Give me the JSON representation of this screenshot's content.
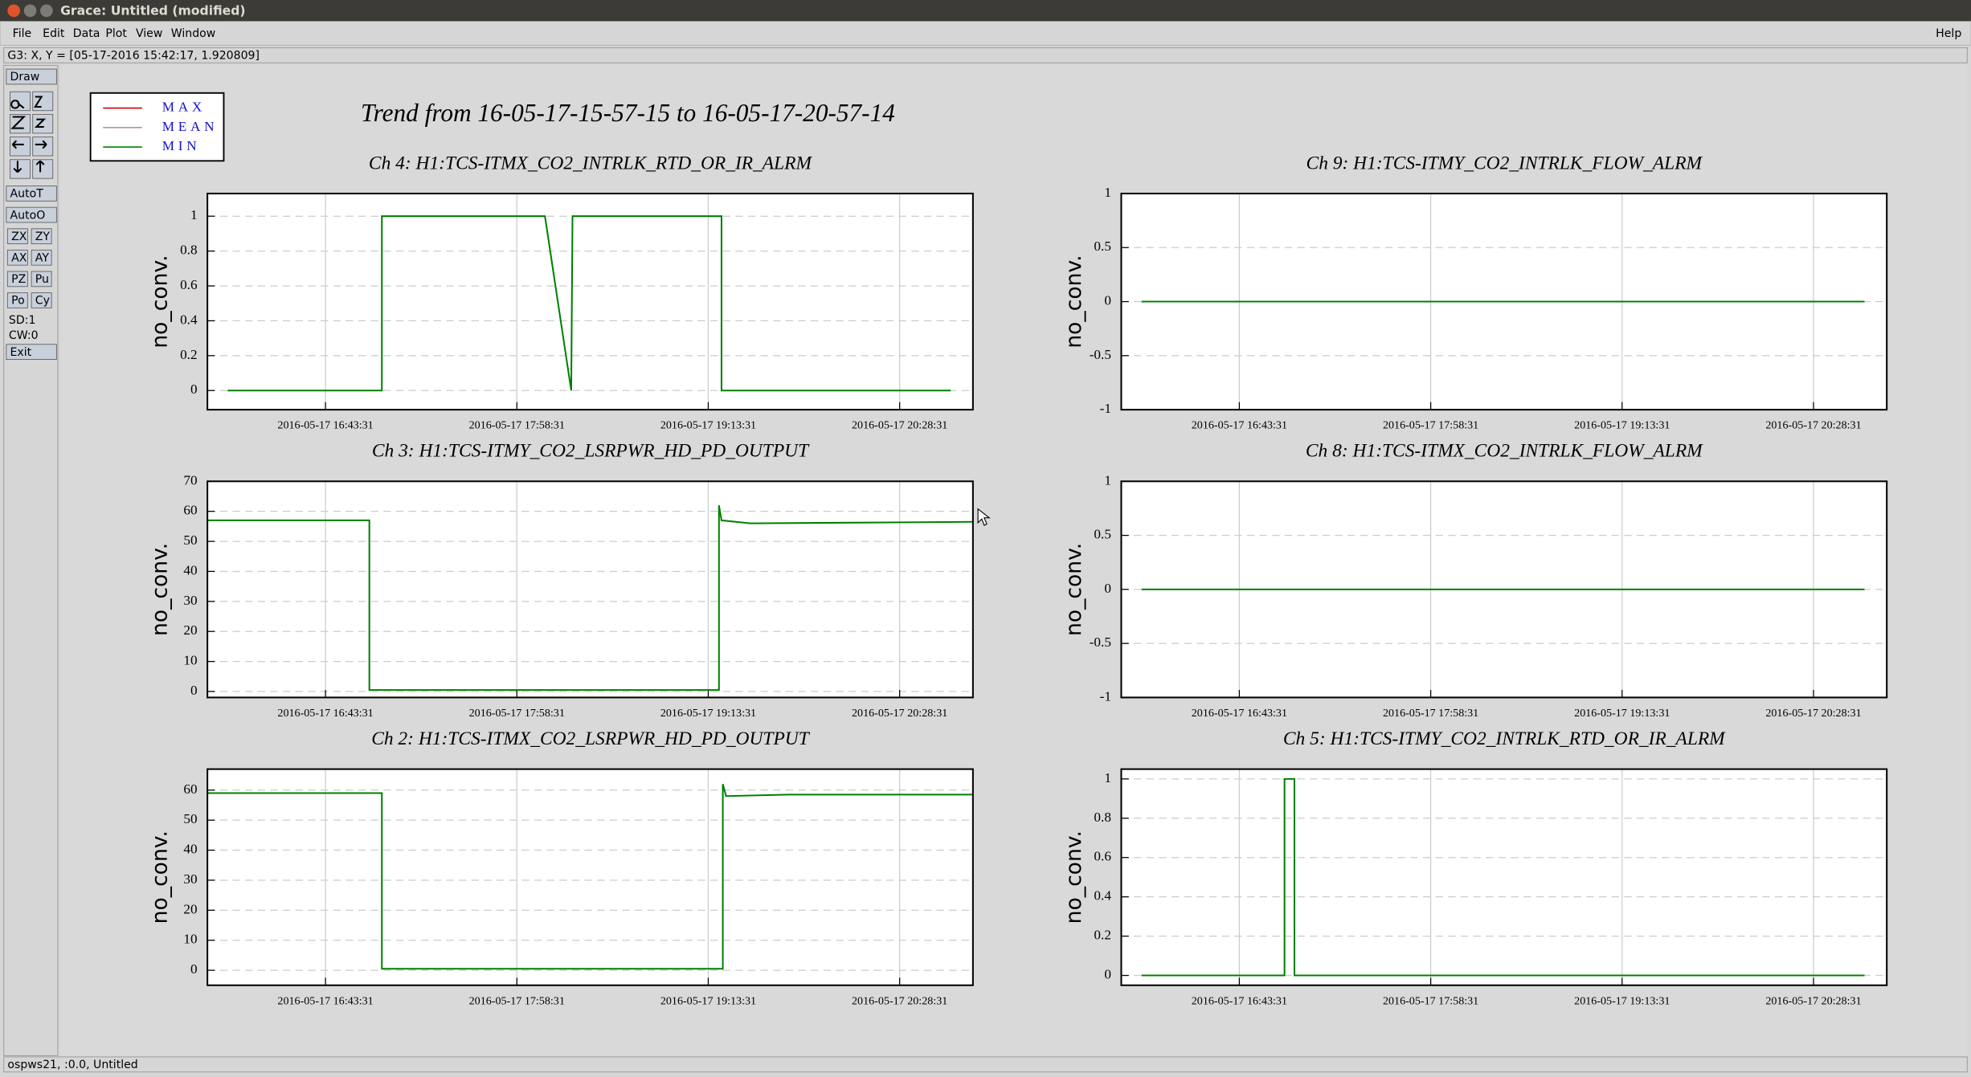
{
  "window": {
    "title": "Grace: Untitled (modified)"
  },
  "menu": [
    "File",
    "Edit",
    "Data",
    "Plot",
    "View",
    "Window"
  ],
  "help": "Help",
  "status_top": "G3: X, Y = [05-17-2016 15:42:17, 1.920809]",
  "status_bottom": "ospws21, :0.0, Untitled",
  "toolbar": {
    "buttons": [
      "Draw",
      "AutoT",
      "AutoO",
      "ZX",
      "ZY",
      "AX",
      "AY",
      "PZ",
      "Pu",
      "Po",
      "Cy",
      "Exit"
    ],
    "labels": [
      "SD:1",
      "CW:0"
    ]
  },
  "title": "Trend from 16-05-17-15-57-15 to 16-05-17-20-57-14",
  "legend": [
    {
      "name": "MAX",
      "color": "#d00000"
    },
    {
      "name": "MEAN",
      "color": "#c09090"
    },
    {
      "name": "MIN",
      "color": "#008000"
    }
  ],
  "chart_data": [
    {
      "type": "line",
      "title": "Ch 4: H1:TCS-ITMX_CO2_INTRLK_RTD_OR_IR_ALRM",
      "ylabel": "no_conv.",
      "xlim": [
        "2016-05-17 15:57:15",
        "2016-05-17 20:57:14"
      ],
      "xticks": [
        "2016-05-17 16:43:31",
        "2016-05-17 17:58:31",
        "2016-05-17 19:13:31",
        "2016-05-17 20:28:31"
      ],
      "ylim": [
        -0.11,
        1.13
      ],
      "yticks": [
        0,
        0.2,
        0.4,
        0.6,
        0.8,
        1
      ],
      "grid": true,
      "color": "#008000",
      "x": [
        "2016-05-17 16:05:12",
        "2016-05-17 17:05:37",
        "2016-05-17 17:05:37",
        "2016-05-17 18:09:31",
        "2016-05-17 18:19:49",
        "2016-05-17 18:20:19",
        "2016-05-17 19:18:43",
        "2016-05-17 19:18:43",
        "2016-05-17 20:48:31"
      ],
      "values": [
        0,
        0,
        1,
        1,
        0,
        1,
        1,
        0,
        0
      ]
    },
    {
      "type": "line",
      "title": "Ch 9: H1:TCS-ITMY_CO2_INTRLK_FLOW_ALRM",
      "ylabel": "no_conv.",
      "xlim": [
        "2016-05-17 15:57:15",
        "2016-05-17 20:57:14"
      ],
      "xticks": [
        "2016-05-17 16:43:31",
        "2016-05-17 17:58:31",
        "2016-05-17 19:13:31",
        "2016-05-17 20:28:31"
      ],
      "ylim": [
        -1,
        1
      ],
      "yticks": [
        -1,
        -0.5,
        0,
        0.5,
        1
      ],
      "grid": true,
      "color": "#008000",
      "x": [
        "2016-05-17 16:05:12",
        "2016-05-17 20:48:31"
      ],
      "values": [
        0,
        0
      ]
    },
    {
      "type": "line",
      "title": "Ch 3: H1:TCS-ITMY_CO2_LSRPWR_HD_PD_OUTPUT",
      "ylabel": "no_conv.",
      "xlim": [
        "2016-05-17 15:57:15",
        "2016-05-17 20:57:14"
      ],
      "xticks": [
        "2016-05-17 16:43:31",
        "2016-05-17 17:58:31",
        "2016-05-17 19:13:31",
        "2016-05-17 20:28:31"
      ],
      "ylim": [
        -2,
        70
      ],
      "yticks": [
        0,
        10,
        20,
        30,
        40,
        50,
        60,
        70
      ],
      "grid": true,
      "color": "#008000",
      "x": [
        "2016-05-17 15:57:15",
        "2016-05-17 17:00:43",
        "2016-05-17 17:00:43",
        "2016-05-17 19:17:43",
        "2016-05-17 19:17:43",
        "2016-05-17 19:18:43",
        "2016-05-17 19:30:00",
        "2016-05-17 20:57:14"
      ],
      "values": [
        57,
        57,
        0.5,
        0.5,
        62,
        57,
        56,
        56.5
      ]
    },
    {
      "type": "line",
      "title": "Ch 8: H1:TCS-ITMX_CO2_INTRLK_FLOW_ALRM",
      "ylabel": "no_conv.",
      "xlim": [
        "2016-05-17 15:57:15",
        "2016-05-17 20:57:14"
      ],
      "xticks": [
        "2016-05-17 16:43:31",
        "2016-05-17 17:58:31",
        "2016-05-17 19:13:31",
        "2016-05-17 20:28:31"
      ],
      "ylim": [
        -1,
        1
      ],
      "yticks": [
        -1,
        -0.5,
        0,
        0.5,
        1
      ],
      "grid": true,
      "color": "#008000",
      "x": [
        "2016-05-17 16:05:12",
        "2016-05-17 20:48:31"
      ],
      "values": [
        0,
        0
      ]
    },
    {
      "type": "line",
      "title": "Ch 2: H1:TCS-ITMX_CO2_LSRPWR_HD_PD_OUTPUT",
      "ylabel": "no_conv.",
      "xlim": [
        "2016-05-17 15:57:15",
        "2016-05-17 20:57:14"
      ],
      "xticks": [
        "2016-05-17 16:43:31",
        "2016-05-17 17:58:31",
        "2016-05-17 19:13:31",
        "2016-05-17 20:28:31"
      ],
      "ylim": [
        -5,
        67
      ],
      "yticks": [
        0,
        10,
        20,
        30,
        40,
        50,
        60
      ],
      "grid": true,
      "color": "#008000",
      "x": [
        "2016-05-17 15:57:15",
        "2016-05-17 17:05:37",
        "2016-05-17 17:05:37",
        "2016-05-17 19:19:13",
        "2016-05-17 19:19:13",
        "2016-05-17 19:20:30",
        "2016-05-17 19:45:00",
        "2016-05-17 20:57:14"
      ],
      "values": [
        59,
        59,
        0.5,
        0.5,
        62,
        58,
        58.5,
        58.5
      ]
    },
    {
      "type": "line",
      "title": "Ch 5: H1:TCS-ITMY_CO2_INTRLK_RTD_OR_IR_ALRM",
      "ylabel": "no_conv.",
      "xlim": [
        "2016-05-17 15:57:15",
        "2016-05-17 20:57:14"
      ],
      "xticks": [
        "2016-05-17 16:43:31",
        "2016-05-17 17:58:31",
        "2016-05-17 19:13:31",
        "2016-05-17 20:28:31"
      ],
      "ylim": [
        -0.05,
        1.05
      ],
      "yticks": [
        0,
        0.2,
        0.4,
        0.6,
        0.8,
        1
      ],
      "grid": true,
      "color": "#008000",
      "x": [
        "2016-05-17 16:05:12",
        "2016-05-17 17:01:13",
        "2016-05-17 17:01:13",
        "2016-05-17 17:05:07",
        "2016-05-17 17:05:07",
        "2016-05-17 20:48:31"
      ],
      "values": [
        0,
        0,
        1,
        1,
        0,
        0
      ]
    }
  ]
}
